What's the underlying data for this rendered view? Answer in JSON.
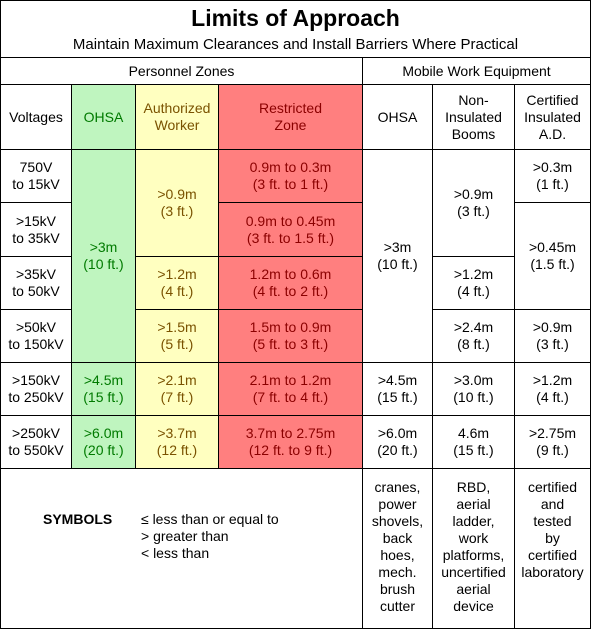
{
  "title": "Limits of Approach",
  "subtitle": "Maintain Maximum Clearances and Install Barriers Where Practical",
  "groups": {
    "personnel": "Personnel Zones",
    "mobile": "Mobile Work Equipment"
  },
  "headers": {
    "voltages": "Voltages",
    "ohsa": "OHSA",
    "authorized": "Authorized\nWorker",
    "restricted": "Restricted\nZone",
    "mobile_ohsa": "OHSA",
    "non_insulated": "Non-\nInsulated\nBooms",
    "certified": "Certified\nInsulated\nA.D."
  },
  "voltages": [
    "750V\nto 15kV",
    ">15kV\nto 35kV",
    ">35kV\nto 50kV",
    ">50kV\nto 150kV",
    ">150kV\nto 250kV",
    ">250kV\nto 550kV"
  ],
  "ohsa_personnel": {
    "r1_4": ">3m\n(10 ft.)",
    "r5": ">4.5m\n(15 ft.)",
    "r6": ">6.0m\n(20 ft.)"
  },
  "authorized": {
    "r1_2": ">0.9m\n(3 ft.)",
    "r3": ">1.2m\n(4 ft.)",
    "r4": ">1.5m\n(5 ft.)",
    "r5": ">2.1m\n(7 ft.)",
    "r6": ">3.7m\n(12 ft.)"
  },
  "restricted": [
    "0.9m to 0.3m\n(3 ft. to 1 ft.)",
    "0.9m to 0.45m\n(3 ft. to 1.5 ft.)",
    "1.2m to 0.6m\n(4 ft. to 2 ft.)",
    "1.5m to 0.9m\n(5 ft. to 3 ft.)",
    "2.1m to 1.2m\n(7 ft. to 4 ft.)",
    "3.7m to 2.75m\n(12 ft. to 9 ft.)"
  ],
  "mobile_ohsa": {
    "r1_4": ">3m\n(10 ft.)",
    "r5": ">4.5m\n(15 ft.)",
    "r6": ">6.0m\n(20 ft.)"
  },
  "non_insulated": {
    "r1_2": ">0.9m\n(3 ft.)",
    "r3": ">1.2m\n(4 ft.)",
    "r4": ">2.4m\n(8 ft.)",
    "r5": ">3.0m\n(10 ft.)",
    "r6": "4.6m\n(15 ft.)"
  },
  "certified": {
    "r1": ">0.3m\n(1 ft.)",
    "r2_3": ">0.45m\n(1.5 ft.)",
    "r4": ">0.9m\n(3 ft.)",
    "r5": ">1.2m\n(4 ft.)",
    "r6": ">2.75m\n(9 ft.)"
  },
  "symbols": {
    "label": "SYMBOLS",
    "items": [
      "≤ less than or equal to",
      "> greater than",
      "< less than"
    ]
  },
  "equipment_notes": {
    "ohsa": "cranes,\npower\nshovels,\nback\nhoes,\nmech.\nbrush\ncutter",
    "non_insulated": "RBD,\naerial\nladder,\nwork\nplatforms,\nuncertified\naerial\ndevice",
    "certified": "certified\nand\ntested\nby\ncertified\nlaboratory"
  }
}
